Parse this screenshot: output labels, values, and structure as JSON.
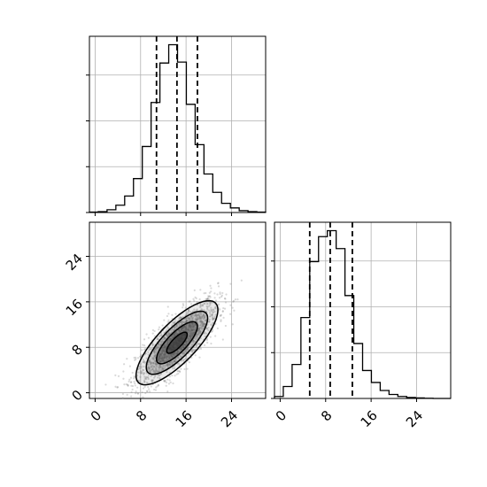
{
  "chart_data": {
    "type": "corner",
    "grid": true,
    "colors": {
      "line": "#000000",
      "grid": "#b0b0b0",
      "density": "#333333",
      "points": "#808080"
    },
    "params": [
      {
        "range": [
          -1,
          30
        ],
        "ticks": [
          0,
          8,
          16,
          24
        ],
        "tick_labels": [
          "0",
          "8",
          "16",
          "24"
        ],
        "quantiles": [
          10.8,
          14.4,
          18.0
        ]
      },
      {
        "range": [
          -1,
          30
        ],
        "ticks": [
          0,
          8,
          16,
          24
        ],
        "tick_labels": [
          "0",
          "8",
          "16",
          "24"
        ],
        "quantiles": [
          5.2,
          8.8,
          12.7
        ]
      }
    ],
    "hist_x": {
      "bin_edges": [
        -1,
        0.55,
        2.1,
        3.65,
        5.2,
        6.75,
        8.3,
        9.85,
        11.4,
        12.95,
        14.5,
        16.05,
        17.6,
        19.15,
        20.7,
        22.25,
        23.8,
        25.35,
        26.9,
        28.45,
        30
      ],
      "counts": [
        0.5,
        1,
        3,
        8,
        18,
        37,
        72,
        120,
        163,
        183,
        164,
        118,
        74,
        42,
        22,
        10,
        5,
        2,
        1,
        0.5
      ]
    },
    "hist_y": {
      "bin_edges": [
        -1,
        0.55,
        2.1,
        3.65,
        5.2,
        6.75,
        8.3,
        9.85,
        11.4,
        12.95,
        14.5,
        16.05,
        17.6,
        19.15,
        20.7,
        22.25,
        23.8,
        25.35,
        26.9,
        28.45,
        30
      ],
      "counts": [
        2,
        12,
        34,
        81,
        137,
        162,
        168,
        150,
        103,
        55,
        28,
        16,
        8,
        4,
        2,
        1,
        0.5,
        0.2,
        0,
        0
      ]
    },
    "joint": {
      "mean": [
        14.4,
        8.8
      ],
      "std": [
        3.6,
        3.7
      ],
      "correlation": 0.78,
      "contour_sigmas": [
        0.5,
        1.0,
        1.5,
        2.0
      ]
    }
  }
}
